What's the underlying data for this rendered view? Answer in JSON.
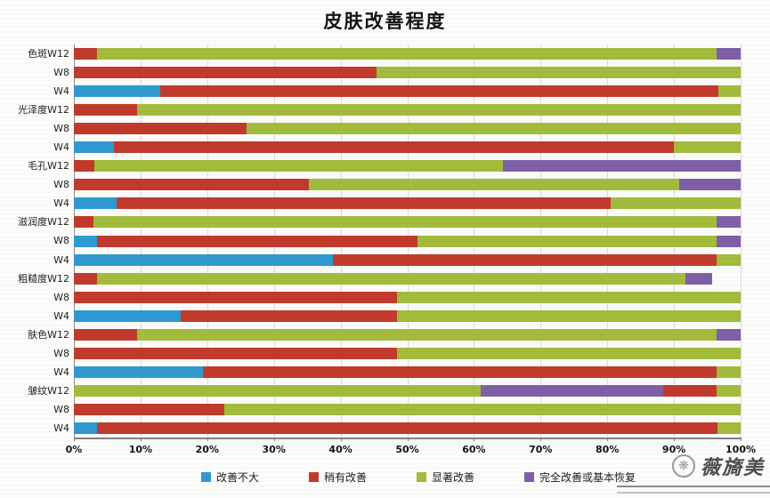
{
  "colors": {
    "blue": "#2f9ad2",
    "red": "#c13b2d",
    "green": "#a3bc3d",
    "purple": "#7e60a8",
    "grid": "#d9d9d9",
    "axis": "#7f7f7f"
  },
  "legend": [
    {
      "key": "blue",
      "label": "改善不大"
    },
    {
      "key": "red",
      "label": "稍有改善"
    },
    {
      "key": "green",
      "label": "显著改善"
    },
    {
      "key": "purple",
      "label": "完全改善或基本恢复"
    }
  ],
  "watermark": {
    "text": "薇旖美",
    "icon": "brand-circle-icon",
    "icon_glyph": "❋"
  },
  "chart_data": {
    "type": "bar",
    "orientation": "horizontal",
    "stacked": true,
    "grid": true,
    "legend_position": "bottom",
    "title": "皮肤改善程度",
    "xlabel": "",
    "ylabel": "",
    "xlim": [
      0,
      100
    ],
    "x_ticks": [
      "0%",
      "10%",
      "20%",
      "30%",
      "40%",
      "50%",
      "60%",
      "70%",
      "80%",
      "90%",
      "100%"
    ],
    "series_names": [
      "改善不大",
      "稍有改善",
      "显著改善",
      "完全改善或基本恢复"
    ],
    "categories": [
      "色斑W12",
      "W8",
      "W4",
      "光泽度W12",
      "W8",
      "W4",
      "毛孔W12",
      "W8",
      "W4",
      "滋润度W12",
      "W8",
      "W4",
      "粗糙度W12",
      "W8",
      "W4",
      "肤色W12",
      "W8",
      "W4",
      "皱纹W12",
      "W8",
      "W4"
    ],
    "rows": [
      {
        "label": "色斑W12",
        "segments": [
          {
            "series": "稍有改善",
            "color": "red",
            "value": 3.5
          },
          {
            "series": "显著改善",
            "color": "green",
            "value": 92.9
          },
          {
            "series": "完全改善或基本恢复",
            "color": "purple",
            "value": 3.6
          }
        ]
      },
      {
        "label": "W8",
        "segments": [
          {
            "series": "稍有改善",
            "color": "red",
            "value": 45.4
          },
          {
            "series": "显著改善",
            "color": "green",
            "value": 54.6
          }
        ]
      },
      {
        "label": "W4",
        "segments": [
          {
            "series": "改善不大",
            "color": "blue",
            "value": 12.9
          },
          {
            "series": "稍有改善",
            "color": "red",
            "value": 83.8
          },
          {
            "series": "显著改善",
            "color": "green",
            "value": 3.3
          }
        ]
      },
      {
        "label": "光泽度W12",
        "segments": [
          {
            "series": "稍有改善",
            "color": "red",
            "value": 9.5
          },
          {
            "series": "显著改善",
            "color": "green",
            "value": 90.5
          }
        ]
      },
      {
        "label": "W8",
        "segments": [
          {
            "series": "稍有改善",
            "color": "red",
            "value": 25.9
          },
          {
            "series": "显著改善",
            "color": "green",
            "value": 74.1
          }
        ]
      },
      {
        "label": "W4",
        "segments": [
          {
            "series": "改善不大",
            "color": "blue",
            "value": 6.0
          },
          {
            "series": "稍有改善",
            "color": "red",
            "value": 84.0
          },
          {
            "series": "显著改善",
            "color": "green",
            "value": 10.0
          }
        ]
      },
      {
        "label": "毛孔W12",
        "segments": [
          {
            "series": "稍有改善",
            "color": "red",
            "value": 3.1
          },
          {
            "series": "显著改善",
            "color": "green",
            "value": 61.3
          },
          {
            "series": "完全改善或基本恢复",
            "color": "purple",
            "value": 35.6
          }
        ]
      },
      {
        "label": "W8",
        "segments": [
          {
            "series": "稍有改善",
            "color": "red",
            "value": 35.2
          },
          {
            "series": "显著改善",
            "color": "green",
            "value": 55.6
          },
          {
            "series": "完全改善或基本恢复",
            "color": "purple",
            "value": 9.2
          }
        ]
      },
      {
        "label": "W4",
        "segments": [
          {
            "series": "改善不大",
            "color": "blue",
            "value": 6.4
          },
          {
            "series": "稍有改善",
            "color": "red",
            "value": 74.1
          },
          {
            "series": "显著改善",
            "color": "green",
            "value": 19.5
          }
        ]
      },
      {
        "label": "滋润度W12",
        "segments": [
          {
            "series": "稍有改善",
            "color": "red",
            "value": 3.0
          },
          {
            "series": "显著改善",
            "color": "green",
            "value": 93.4
          },
          {
            "series": "完全改善或基本恢复",
            "color": "purple",
            "value": 3.6
          }
        ]
      },
      {
        "label": "W8",
        "segments": [
          {
            "series": "改善不大",
            "color": "blue",
            "value": 3.5
          },
          {
            "series": "稍有改善",
            "color": "red",
            "value": 48.0
          },
          {
            "series": "显著改善",
            "color": "green",
            "value": 44.9
          },
          {
            "series": "完全改善或基本恢复",
            "color": "purple",
            "value": 3.6
          }
        ]
      },
      {
        "label": "W4",
        "segments": [
          {
            "series": "改善不大",
            "color": "blue",
            "value": 38.9
          },
          {
            "series": "稍有改善",
            "color": "red",
            "value": 57.5
          },
          {
            "series": "显著改善",
            "color": "green",
            "value": 3.6
          }
        ]
      },
      {
        "label": "粗糙度W12",
        "segments": [
          {
            "series": "稍有改善",
            "color": "red",
            "value": 3.5
          },
          {
            "series": "显著改善",
            "color": "green",
            "value": 88.2
          },
          {
            "series": "完全改善或基本恢复",
            "color": "purple",
            "value": 4.0
          }
        ]
      },
      {
        "label": "W8",
        "segments": [
          {
            "series": "稍有改善",
            "color": "red",
            "value": 48.5
          },
          {
            "series": "显著改善",
            "color": "green",
            "value": 51.5
          }
        ]
      },
      {
        "label": "W4",
        "segments": [
          {
            "series": "改善不大",
            "color": "blue",
            "value": 16.0
          },
          {
            "series": "稍有改善",
            "color": "red",
            "value": 32.5
          },
          {
            "series": "显著改善",
            "color": "green",
            "value": 51.5
          }
        ]
      },
      {
        "label": "肤色W12",
        "segments": [
          {
            "series": "稍有改善",
            "color": "red",
            "value": 9.5
          },
          {
            "series": "显著改善",
            "color": "green",
            "value": 86.9
          },
          {
            "series": "完全改善或基本恢复",
            "color": "purple",
            "value": 3.6
          }
        ]
      },
      {
        "label": "W8",
        "segments": [
          {
            "series": "稍有改善",
            "color": "red",
            "value": 48.5
          },
          {
            "series": "显著改善",
            "color": "green",
            "value": 51.5
          }
        ]
      },
      {
        "label": "W4",
        "segments": [
          {
            "series": "改善不大",
            "color": "blue",
            "value": 19.4
          },
          {
            "series": "稍有改善",
            "color": "red",
            "value": 77.0
          },
          {
            "series": "显著改善",
            "color": "green",
            "value": 3.6
          }
        ]
      },
      {
        "label": "皱纹W12",
        "segments": [
          {
            "series": "显著改善",
            "color": "green",
            "value": 61.0
          },
          {
            "series": "完全改善或基本恢复",
            "color": "purple",
            "value": 27.4
          },
          {
            "series": "稍有改善",
            "color": "red",
            "value": 8.0
          },
          {
            "series": "显著改善",
            "color": "green",
            "value": 3.6
          }
        ]
      },
      {
        "label": "W8",
        "segments": [
          {
            "series": "稍有改善",
            "color": "red",
            "value": 22.5
          },
          {
            "series": "显著改善",
            "color": "green",
            "value": 77.5
          }
        ]
      },
      {
        "label": "W4",
        "segments": [
          {
            "series": "改善不大",
            "color": "blue",
            "value": 3.5
          },
          {
            "series": "稍有改善",
            "color": "red",
            "value": 93.0
          },
          {
            "series": "显著改善",
            "color": "green",
            "value": 3.5
          }
        ]
      }
    ]
  }
}
